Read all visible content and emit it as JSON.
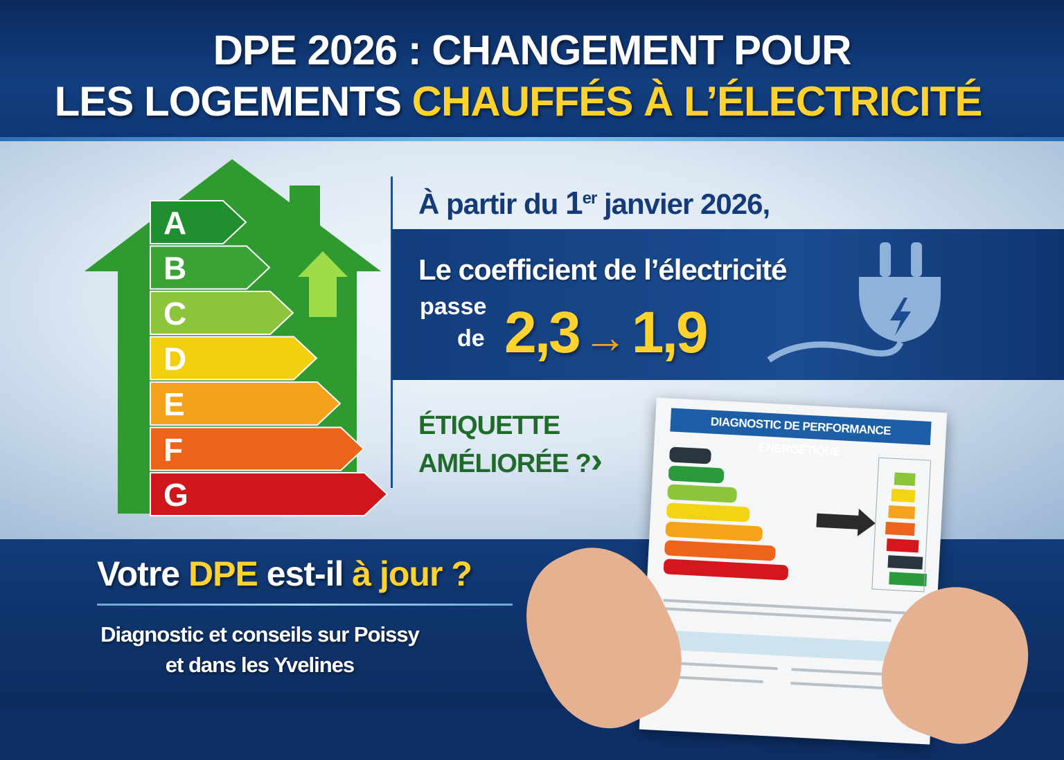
{
  "header": {
    "title_line1": "DPE 2026 : CHANGEMENT POUR",
    "title_line2_white": "LES LOGEMENTS ",
    "title_line2_yellow": "CHAUFFÉS À L’ÉLECTRICITÉ"
  },
  "energy_label": {
    "classes": [
      {
        "letter": "A",
        "color": "#1f8f2f"
      },
      {
        "letter": "B",
        "color": "#3ba336"
      },
      {
        "letter": "C",
        "color": "#8cc43a"
      },
      {
        "letter": "D",
        "color": "#f2cf0e"
      },
      {
        "letter": "E",
        "color": "#f4a11b"
      },
      {
        "letter": "F",
        "color": "#ec6419"
      },
      {
        "letter": "G",
        "color": "#cf161c"
      }
    ],
    "house_color": "#2f9a2f",
    "up_arrow_icon": "arrow-up-icon"
  },
  "info": {
    "date_prefix": "À partir du ",
    "date_day": "1",
    "date_sup": "er",
    "date_rest": " janvier 2026,",
    "coef_label": "Le coefficient de l’électricité",
    "passe": "passe",
    "de": "de",
    "old_value": "2,3",
    "arrow": "→",
    "new_value": "1,9",
    "plug_icon": "electric-plug-icon",
    "etiquette_line1": "ÉTIQUETTE",
    "etiquette_line2": "AMÉLIORÉE ?",
    "chevron": "›"
  },
  "footer": {
    "question_1": "Votre ",
    "question_dpe": "DPE",
    "question_2": " est-il ",
    "question_3": "à jour ?",
    "sub_line1": "Diagnostic et conseils sur Poissy",
    "sub_line2": "et dans les Yvelines"
  },
  "document": {
    "title": "DIAGNOSTIC DE PERFORMANCE ÉNERGÉTIQUE"
  },
  "colors": {
    "navy": "#123d7d",
    "yellow": "#ffd22e",
    "orange": "#f7a21b",
    "green_text": "#1f6b2a"
  }
}
